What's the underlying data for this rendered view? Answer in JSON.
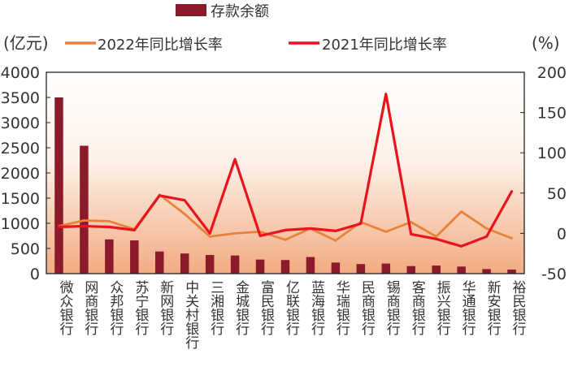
{
  "chart_data": {
    "type": "bar",
    "title": "",
    "left_unit": "(亿元)",
    "right_unit": "(%)",
    "categories": [
      "微众银行",
      "网商银行",
      "众邦银行",
      "苏宁银行",
      "新网银行",
      "中关村银行",
      "三湘银行",
      "金城银行",
      "富民银行",
      "亿联银行",
      "蓝海银行",
      "华瑞银行",
      "民商银行",
      "锡商银行",
      "客商银行",
      "振兴银行",
      "华通银行",
      "新安银行",
      "裕民银行"
    ],
    "yleft": {
      "min": 0,
      "max": 4000,
      "ticks": [
        "0",
        "500",
        "1000",
        "1500",
        "2000",
        "2500",
        "3000",
        "3500",
        "4000"
      ]
    },
    "yright": {
      "min": -50,
      "max": 200,
      "ticks": [
        "-50",
        "0",
        "50",
        "100",
        "150",
        "200"
      ]
    },
    "grid": false,
    "legend_position": "top",
    "series": [
      {
        "name": "存款余额",
        "kind": "bar",
        "axis": "left",
        "color": "#8b1a2b",
        "values": [
          3500,
          2540,
          680,
          660,
          440,
          400,
          370,
          360,
          280,
          270,
          330,
          220,
          190,
          200,
          150,
          160,
          140,
          90,
          80
        ]
      },
      {
        "name": "2022年同比增长率",
        "kind": "line",
        "axis": "right",
        "color": "#e8823a",
        "values": [
          9,
          16,
          15,
          5,
          48,
          24,
          -4,
          0,
          2,
          -8,
          6,
          -9,
          14,
          2,
          14,
          -4,
          27,
          6,
          -6
        ]
      },
      {
        "name": "2021年同比增长率",
        "kind": "line",
        "axis": "right",
        "color": "#e8141e",
        "values": [
          8,
          9,
          8,
          4,
          47,
          41,
          0,
          92,
          -3,
          4,
          6,
          3,
          12,
          173,
          -1,
          -7,
          -16,
          -4,
          52
        ]
      }
    ]
  }
}
